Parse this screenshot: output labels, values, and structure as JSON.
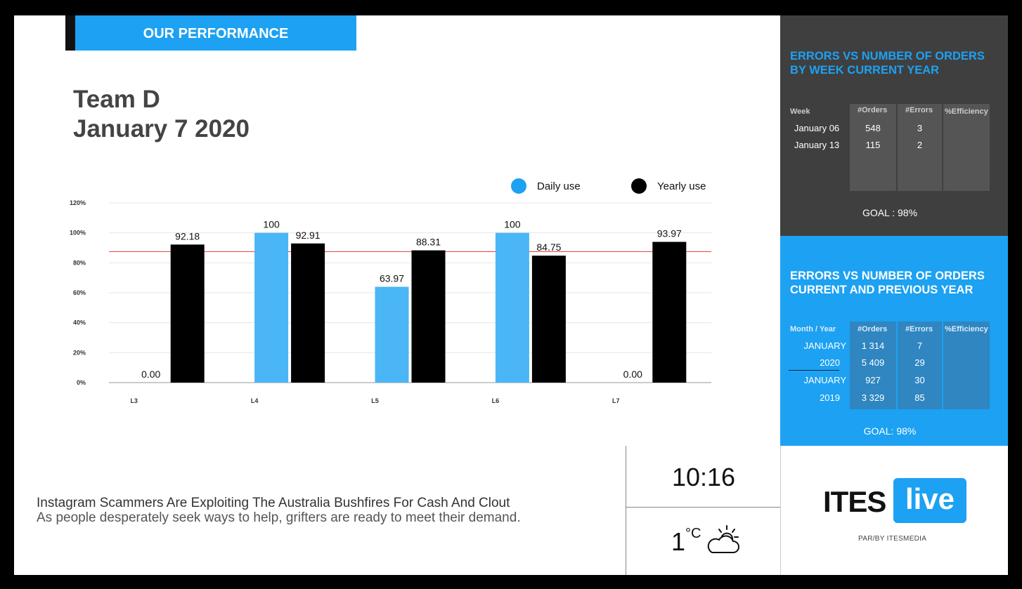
{
  "header": {
    "tag": "OUR PERFORMANCE",
    "team": "Team D",
    "date": "January 7 2020"
  },
  "legend": {
    "daily": "Daily use",
    "yearly": "Yearly use"
  },
  "colors": {
    "daily": "#4ab6f5",
    "yearly": "#000000",
    "goal_line": "#e53935",
    "accent": "#1da1f2"
  },
  "chart_data": {
    "type": "bar",
    "categories": [
      "L3",
      "L4",
      "L5",
      "L6",
      "L7"
    ],
    "series": [
      {
        "name": "Daily use",
        "values": [
          0,
          100,
          63.97,
          100,
          0
        ],
        "labels": [
          "0.00",
          "100",
          "63.97",
          "100",
          "0.00"
        ]
      },
      {
        "name": "Yearly use",
        "values": [
          92.18,
          92.91,
          88.31,
          84.75,
          93.97
        ],
        "labels": [
          "92.18",
          "92.91",
          "88.31",
          "84.75",
          "93.97"
        ]
      }
    ],
    "y_ticks": [
      "0%",
      "20%",
      "40%",
      "60%",
      "80%",
      "100%",
      "120%"
    ],
    "ylim": [
      0,
      120
    ],
    "goal_line": 87.5,
    "grid": true,
    "legend_position": "top-right"
  },
  "news": {
    "headline": "Instagram Scammers Are Exploiting The Australia Bushfires For Cash And Clout",
    "subheadline": "As people desperately seek ways to help, grifters are ready to meet their demand."
  },
  "clock": {
    "time": "10:16"
  },
  "weather": {
    "temp": "1",
    "unit": "°C",
    "icon": "partly-cloudy-icon"
  },
  "panel_week": {
    "title": "ERRORS VS NUMBER OF ORDERS BY WEEK CURRENT YEAR",
    "headers": [
      "Week",
      "#Orders",
      "#Errors",
      "%Efficiency"
    ],
    "rows": [
      {
        "week": "January 06",
        "orders": "548",
        "errors": "3"
      },
      {
        "week": "January 13",
        "orders": "115",
        "errors": "2"
      }
    ],
    "goal": "GOAL : 98%"
  },
  "panel_year": {
    "title": "ERRORS VS NUMBER OF ORDERS CURRENT AND PREVIOUS YEAR",
    "headers": [
      "Month / Year",
      "#Orders",
      "#Errors",
      "%Efficiency"
    ],
    "rows": [
      {
        "label": "JANUARY",
        "orders": "1 314",
        "errors": "7"
      },
      {
        "label": "2020",
        "orders": "5 409",
        "errors": "29"
      },
      {
        "label": "JANUARY",
        "orders": "927",
        "errors": "30"
      },
      {
        "label": "2019",
        "orders": "3 329",
        "errors": "85"
      }
    ],
    "goal": "GOAL: 98%"
  },
  "logo": {
    "ites": "ITES",
    "live": "live",
    "sub": "PAR/BY ITESMEDIA"
  }
}
